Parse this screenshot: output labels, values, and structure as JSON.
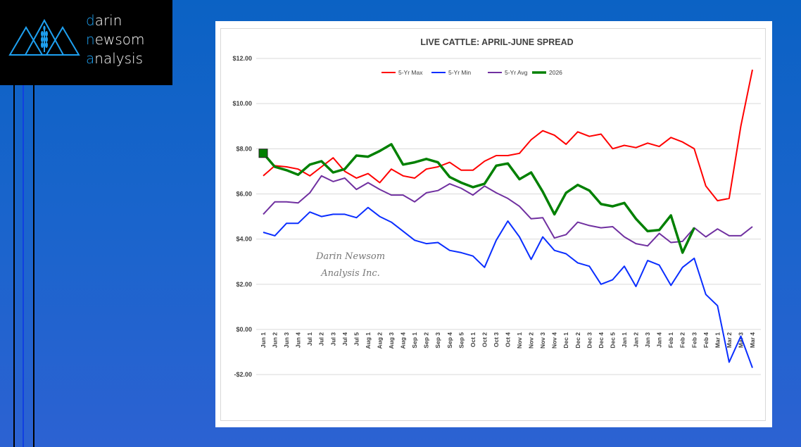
{
  "logo": {
    "line1_accent": "d",
    "line1_rest": "arin",
    "line2_accent": "n",
    "line2_mid": "ew",
    "line2_rest": "som",
    "line3_accent": "a",
    "line3_rest": "nalysis",
    "accent_color": "#1ea0f0"
  },
  "chart_data": {
    "type": "line",
    "title": "LIVE CATTLE: APRIL-JUNE SPREAD",
    "xlabel": "",
    "ylabel": "",
    "ylim": [
      -2,
      12
    ],
    "yticks": [
      -2,
      0,
      2,
      4,
      6,
      8,
      10,
      12
    ],
    "ytick_labels": [
      "-$2.00",
      "$0.00",
      "$2.00",
      "$4.00",
      "$6.00",
      "$8.00",
      "$10.00",
      "$12.00"
    ],
    "grid": true,
    "legend_position": "top",
    "watermark": [
      "Darin Newsom",
      "Analysis Inc."
    ],
    "categories": [
      "Jun 1",
      "Jun 2",
      "Jun 3",
      "Jun 4",
      "Jul 1",
      "Jul 2",
      "Jul 3",
      "Jul 4",
      "Jul 5",
      "Aug 1",
      "Aug 2",
      "Aug 3",
      "Aug 4",
      "Sep 1",
      "Sep 2",
      "Sep 3",
      "Sep 4",
      "Sep 5",
      "Oct 1",
      "Oct 2",
      "Oct 3",
      "Oct 4",
      "Nov 1",
      "Nov 2",
      "Nov 3",
      "Nov 4",
      "Dec 1",
      "Dec 2",
      "Dec 3",
      "Dec 4",
      "Dec 5",
      "Jan 1",
      "Jan 2",
      "Jan 3",
      "Jan 4",
      "Feb 1",
      "Feb 2",
      "Feb 3",
      "Feb 4",
      "Mar 1",
      "Mar 2",
      "Mar 3",
      "Mar 4"
    ],
    "series": [
      {
        "name": "5-Yr Max",
        "color": "#ff0000",
        "width": 2,
        "values": [
          6.8,
          7.25,
          7.2,
          7.1,
          6.8,
          7.2,
          7.6,
          7.0,
          6.7,
          6.9,
          6.5,
          7.1,
          6.8,
          6.7,
          7.1,
          7.2,
          7.4,
          7.05,
          7.05,
          7.45,
          7.7,
          7.7,
          7.8,
          8.4,
          8.8,
          8.6,
          8.2,
          8.75,
          8.55,
          8.65,
          8.0,
          8.15,
          8.05,
          8.25,
          8.1,
          8.5,
          8.3,
          8.0,
          6.35,
          5.7,
          5.8,
          9.0,
          11.5
        ]
      },
      {
        "name": "5-Yr Min",
        "color": "#0a2eff",
        "width": 2,
        "values": [
          4.3,
          4.15,
          4.7,
          4.7,
          5.2,
          5.0,
          5.1,
          5.1,
          4.95,
          5.4,
          5.0,
          4.75,
          4.35,
          3.95,
          3.8,
          3.85,
          3.5,
          3.4,
          3.25,
          2.75,
          3.95,
          4.8,
          4.1,
          3.1,
          4.1,
          3.5,
          3.35,
          2.95,
          2.8,
          2.0,
          2.2,
          2.8,
          1.9,
          3.05,
          2.85,
          1.95,
          2.75,
          3.15,
          1.55,
          1.05,
          -1.45,
          -0.3,
          -1.7
        ]
      },
      {
        "name": "5-Yr Avg",
        "color": "#7030a0",
        "width": 2,
        "values": [
          5.1,
          5.65,
          5.65,
          5.6,
          6.05,
          6.8,
          6.55,
          6.7,
          6.2,
          6.5,
          6.2,
          5.95,
          5.95,
          5.65,
          6.05,
          6.15,
          6.45,
          6.25,
          5.95,
          6.35,
          6.05,
          5.8,
          5.45,
          4.9,
          4.95,
          4.05,
          4.2,
          4.75,
          4.6,
          4.5,
          4.55,
          4.1,
          3.8,
          3.7,
          4.25,
          3.85,
          3.9,
          4.5,
          4.1,
          4.45,
          4.15,
          4.15,
          4.55
        ]
      },
      {
        "name": "2026",
        "color": "#008000",
        "width": 3.5,
        "values": [
          7.8,
          7.2,
          7.05,
          6.85,
          7.3,
          7.45,
          6.95,
          7.1,
          7.7,
          7.65,
          7.9,
          8.2,
          7.3,
          7.4,
          7.55,
          7.4,
          6.75,
          6.5,
          6.3,
          6.45,
          7.25,
          7.35,
          6.65,
          6.95,
          6.1,
          5.1,
          6.05,
          6.4,
          6.15,
          5.55,
          5.45,
          5.6,
          4.9,
          4.35,
          4.4,
          5.05,
          3.4,
          4.5,
          null,
          null,
          null,
          null,
          null
        ]
      }
    ]
  }
}
